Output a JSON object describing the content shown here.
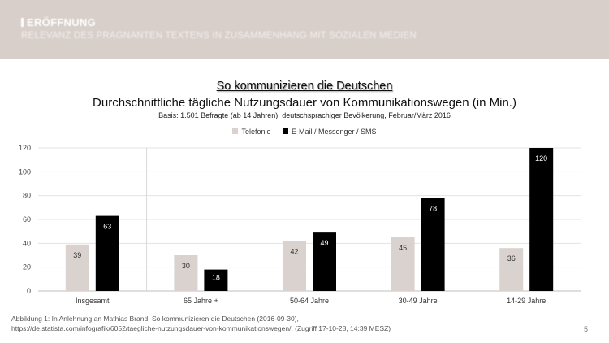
{
  "header": {
    "section_title": "ERÖFFNUNG",
    "section_subtitle": "RELEVANZ DES PRÄGNANTEN TEXTENS IN ZUSAMMENHANG MIT SOZIALEN MEDIEN"
  },
  "slide_title": "So kommunizieren die Deutschen",
  "colors": {
    "header_bg": "#d8cfcb",
    "telefonie": "#d9d2ce",
    "email": "#000000"
  },
  "chart_data": {
    "type": "bar",
    "title": "Durchschnittliche tägliche Nutzungsdauer von Kommunikationswegen (in Min.)",
    "subtitle": "Basis: 1.501 Befragte (ab 14 Jahren), deutschsprachiger Bevölkerung, Februar/März 2016",
    "categories": [
      "Insgesamt",
      "65 Jahre +",
      "50-64 Jahre",
      "30-49 Jahre",
      "14-29 Jahre"
    ],
    "series": [
      {
        "name": "Telefonie",
        "values": [
          39,
          30,
          42,
          45,
          36
        ],
        "labels": [
          "39",
          "30",
          "42",
          "45",
          "36"
        ]
      },
      {
        "name": "E-Mail / Messenger / SMS",
        "values": [
          63,
          18,
          49,
          78,
          120
        ],
        "labels": [
          "63",
          "18",
          "49",
          "78",
          "120"
        ]
      }
    ],
    "ylim": [
      0,
      120
    ],
    "yticks": [
      0,
      20,
      40,
      60,
      80,
      100,
      120
    ],
    "grid": true,
    "legend_position": "top-center"
  },
  "footnote": {
    "line1": "Abbildung 1: In Anlehnung an Mathias Brand: So kommunizieren die Deutschen (2016-09-30),",
    "line2": "https://de.statista.com/infografik/6052/taegliche-nutzungsdauer-von-kommunikationswegen/, (Zugriff 17-10-28, 14:39 MESZ)"
  },
  "page_number": "5"
}
